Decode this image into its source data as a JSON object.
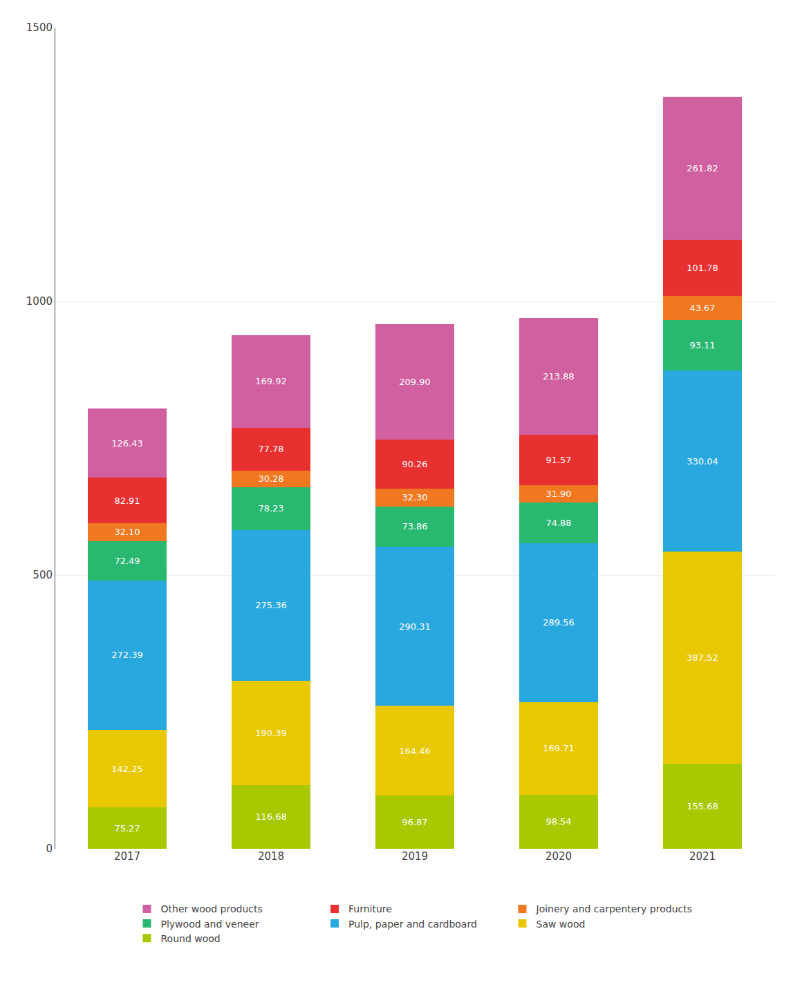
{
  "chart_data": {
    "type": "bar",
    "stacked": true,
    "categories": [
      "2017",
      "2018",
      "2019",
      "2020",
      "2021"
    ],
    "series": [
      {
        "name": "Round wood",
        "color": "#a8c800",
        "values": [
          75.27,
          116.68,
          96.87,
          98.54,
          155.68
        ]
      },
      {
        "name": "Saw wood",
        "color": "#e8c800",
        "values": [
          142.25,
          190.39,
          164.46,
          169.71,
          387.52
        ]
      },
      {
        "name": "Pulp, paper and cardboard",
        "color": "#29a8e0",
        "values": [
          272.39,
          275.36,
          290.31,
          289.56,
          330.04
        ]
      },
      {
        "name": "Plywood and veneer",
        "color": "#28b870",
        "values": [
          72.49,
          78.23,
          73.86,
          74.88,
          93.11
        ]
      },
      {
        "name": "Joinery and carpentery products",
        "color": "#f07820",
        "values": [
          32.1,
          30.28,
          32.3,
          31.9,
          43.67
        ],
        "value_labels": [
          "32.10",
          "30.28",
          "32.30",
          "31.90",
          "43.67"
        ]
      },
      {
        "name": "Furniture",
        "color": "#e83030",
        "values": [
          82.91,
          77.78,
          90.26,
          91.57,
          101.78
        ]
      },
      {
        "name": "Other wood products",
        "color": "#d060a0",
        "values": [
          126.43,
          169.92,
          209.9,
          213.88,
          261.82
        ],
        "value_labels": [
          "126.43",
          "169.92",
          "209.90",
          "213.88",
          "261.82"
        ]
      }
    ],
    "ylim": [
      0,
      1500
    ],
    "yticks": [
      0,
      500,
      1000,
      1500
    ],
    "grid": true,
    "data_labels": true,
    "legend": "bottom"
  }
}
